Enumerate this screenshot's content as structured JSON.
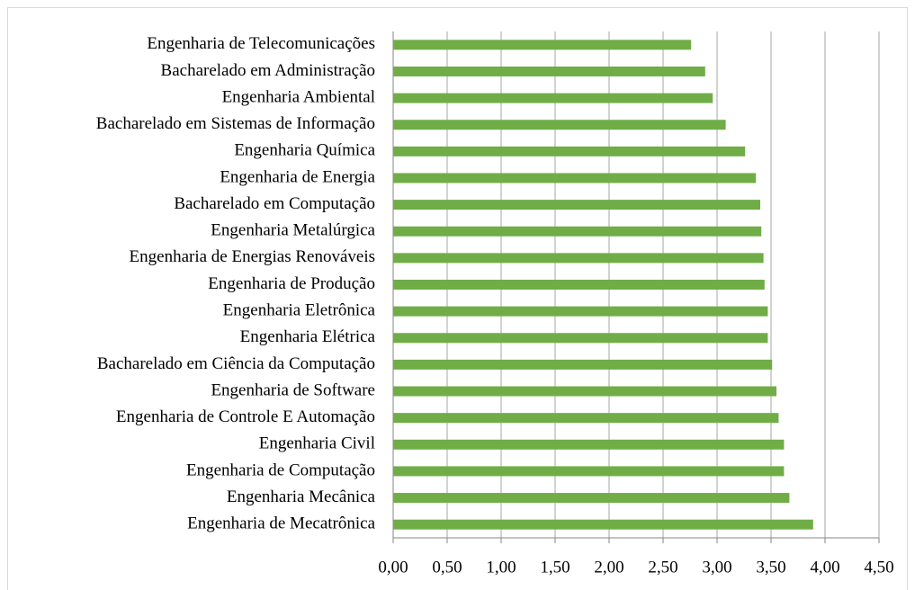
{
  "chart_data": {
    "type": "hbar",
    "categories": [
      "Engenharia de Telecomunicações",
      "Bacharelado em Administração",
      "Engenharia Ambiental",
      "Bacharelado em Sistemas de Informação",
      "Engenharia Química",
      "Engenharia de Energia",
      "Bacharelado em Computação",
      "Engenharia Metalúrgica",
      "Engenharia de Energias Renováveis",
      "Engenharia de Produção",
      "Engenharia Eletrônica",
      "Engenharia Elétrica",
      "Bacharelado em Ciência da Computação",
      "Engenharia de Software",
      "Engenharia de Controle E Automação",
      "Engenharia Civil",
      "Engenharia de Computação",
      "Engenharia Mecânica",
      "Engenharia de Mecatrônica"
    ],
    "values": [
      2.76,
      2.89,
      2.96,
      3.08,
      3.26,
      3.36,
      3.4,
      3.41,
      3.43,
      3.44,
      3.47,
      3.47,
      3.51,
      3.55,
      3.57,
      3.62,
      3.62,
      3.67,
      3.89
    ],
    "color": "#70ad47",
    "xlim": [
      0,
      4.5
    ],
    "xticks": [
      {
        "value": 0,
        "label": "0,00"
      },
      {
        "value": 0.5,
        "label": "0,50"
      },
      {
        "value": 1,
        "label": "1,00"
      },
      {
        "value": 1.5,
        "label": "1,50"
      },
      {
        "value": 2,
        "label": "2,00"
      },
      {
        "value": 2.5,
        "label": "2,50"
      },
      {
        "value": 3,
        "label": "3,00"
      },
      {
        "value": 3.5,
        "label": "3,50"
      },
      {
        "value": 4,
        "label": "4,00"
      },
      {
        "value": 4.5,
        "label": "4,50"
      }
    ],
    "grid": true
  }
}
